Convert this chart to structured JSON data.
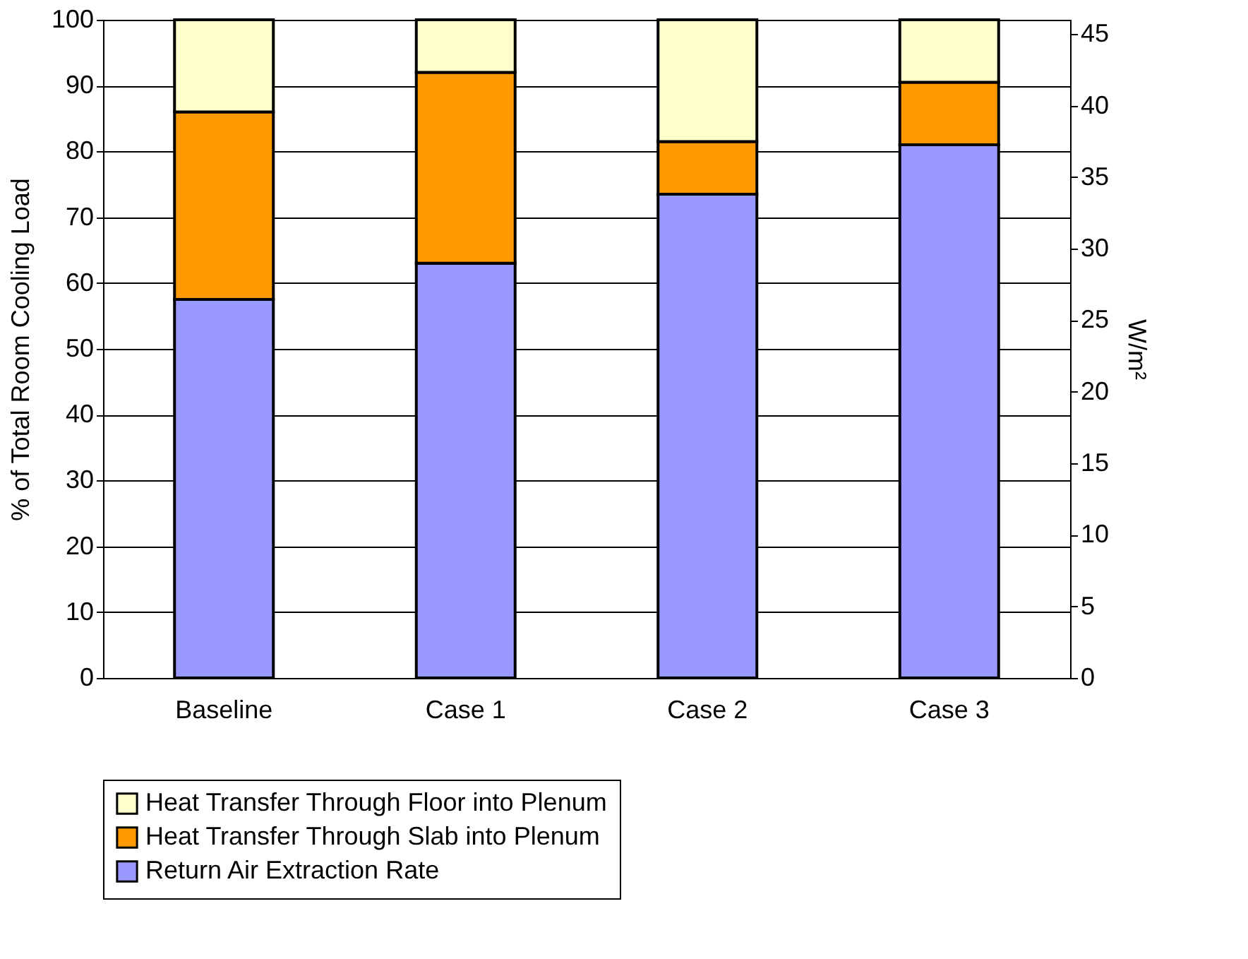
{
  "chart_data": {
    "type": "bar",
    "stacked": true,
    "ylabel": "% of Total  Room Cooling Load",
    "y2label": "W/m²",
    "categories": [
      "Baseline",
      "Case 1",
      "Case 2",
      "Case 3"
    ],
    "series": [
      {
        "name": "Return Air Extraction Rate",
        "color": "#9999ff",
        "values": [
          57.5,
          63,
          73.5,
          81
        ]
      },
      {
        "name": "Heat Transfer Through Slab into Plenum",
        "color": "#ff9900",
        "values": [
          28.5,
          29,
          8,
          9.5
        ]
      },
      {
        "name": "Heat Transfer Through Floor into Plenum",
        "color": "#ffffcc",
        "values": [
          14,
          8,
          18.5,
          9.5
        ]
      }
    ],
    "ylim": [
      0,
      100
    ],
    "yticks": [
      0,
      10,
      20,
      30,
      40,
      50,
      60,
      70,
      80,
      90,
      100
    ],
    "y2lim": [
      0,
      46
    ],
    "y2ticks": [
      0,
      5,
      10,
      15,
      20,
      25,
      30,
      35,
      40,
      45
    ],
    "grid": "y",
    "legend": "bottom"
  }
}
